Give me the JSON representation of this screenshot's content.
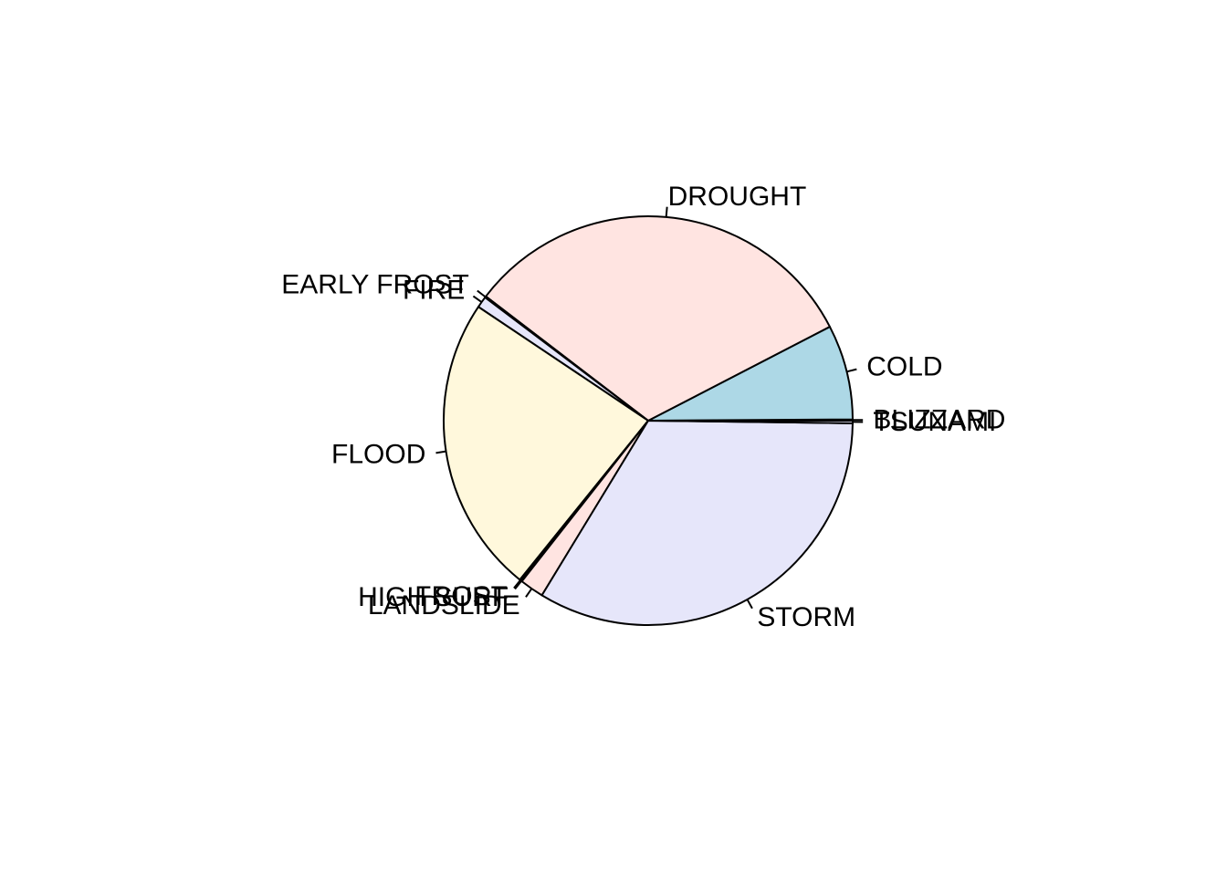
{
  "chart_data": {
    "type": "pie",
    "title": "",
    "start_angle_deg": 0,
    "direction": "counterclockwise",
    "slices": [
      {
        "label": "BLIZZARD",
        "value": 0.1,
        "color": "#e6e6fa"
      },
      {
        "label": "COLD",
        "value": 7.5,
        "color": "#add8e6"
      },
      {
        "label": "DROUGHT",
        "value": 32.0,
        "color": "#ffe4e1"
      },
      {
        "label": "EARLY FROST",
        "value": 0.1,
        "color": "#fff8dc"
      },
      {
        "label": "FIRE",
        "value": 0.9,
        "color": "#e6e6fa"
      },
      {
        "label": "FLOOD",
        "value": 23.6,
        "color": "#fff8dc"
      },
      {
        "label": "FROST",
        "value": 0.1,
        "color": "#e6e6fa"
      },
      {
        "label": "HIGH SURF",
        "value": 0.1,
        "color": "#ffe4e1"
      },
      {
        "label": "LANDSLIDE",
        "value": 1.9,
        "color": "#ffe4e1"
      },
      {
        "label": "STORM",
        "value": 33.5,
        "color": "#e6e6fa"
      },
      {
        "label": "TSUNAMI",
        "value": 0.2,
        "color": "#e6e6fa"
      }
    ]
  }
}
